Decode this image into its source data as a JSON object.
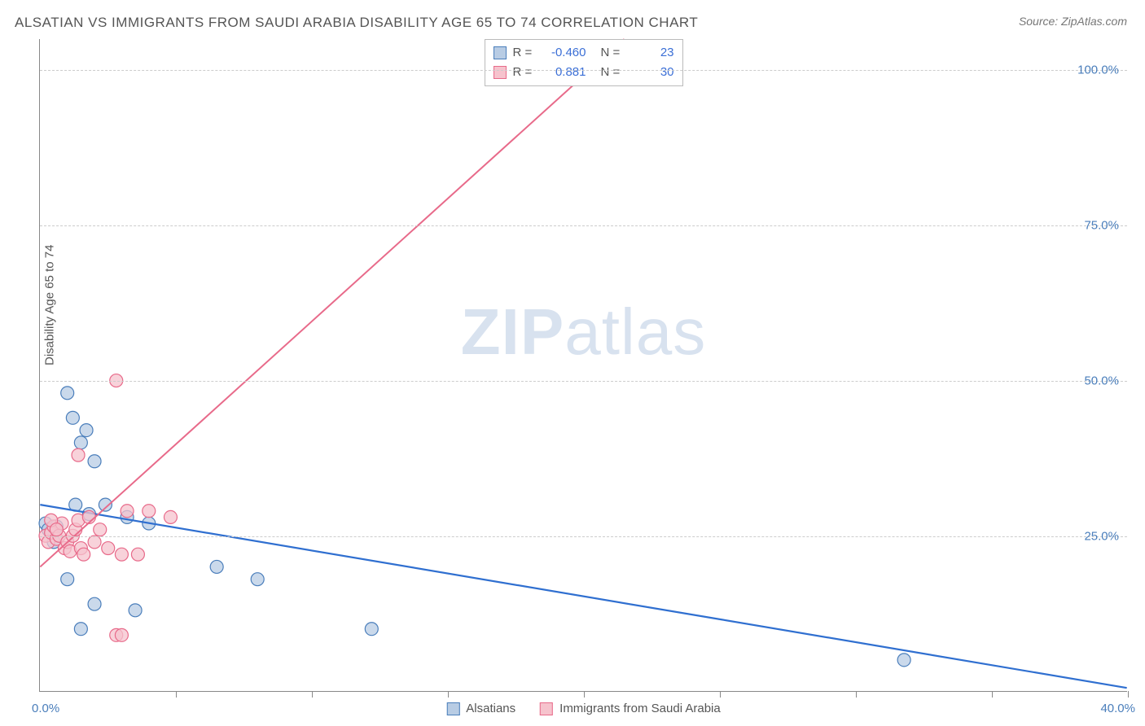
{
  "title": "ALSATIAN VS IMMIGRANTS FROM SAUDI ARABIA DISABILITY AGE 65 TO 74 CORRELATION CHART",
  "source_label": "Source: ZipAtlas.com",
  "ylabel": "Disability Age 65 to 74",
  "watermark": {
    "bold": "ZIP",
    "rest": "atlas"
  },
  "chart": {
    "type": "scatter",
    "xlim": [
      0,
      40
    ],
    "ylim": [
      0,
      105
    ],
    "xticks": [
      0,
      5,
      10,
      15,
      20,
      25,
      30,
      35,
      40
    ],
    "yticks": [
      25,
      50,
      75,
      100
    ],
    "ytick_labels": [
      "25.0%",
      "50.0%",
      "75.0%",
      "100.0%"
    ],
    "x_corner_left": "0.0%",
    "x_corner_right": "40.0%",
    "grid_color": "#cccccc",
    "axis_color": "#888888",
    "background_color": "#ffffff"
  },
  "series": [
    {
      "name": "Alsatians",
      "fill": "#b8cce4",
      "stroke": "#4a7ebb",
      "marker_radius": 8,
      "R": "-0.460",
      "N": "23",
      "trend": {
        "x1": 0,
        "y1": 30,
        "x2": 40,
        "y2": 0.5,
        "color": "#2f6fd0",
        "width": 2.2
      },
      "points": [
        [
          0.2,
          27
        ],
        [
          0.3,
          26
        ],
        [
          0.4,
          25.5
        ],
        [
          0.5,
          24
        ],
        [
          0.6,
          26.5
        ],
        [
          1.0,
          48
        ],
        [
          1.2,
          44
        ],
        [
          1.5,
          40
        ],
        [
          1.7,
          42
        ],
        [
          2.0,
          37
        ],
        [
          1.3,
          30
        ],
        [
          1.8,
          28.5
        ],
        [
          2.4,
          30
        ],
        [
          3.2,
          28
        ],
        [
          4.0,
          27
        ],
        [
          1.0,
          18
        ],
        [
          2.0,
          14
        ],
        [
          3.5,
          13
        ],
        [
          6.5,
          20
        ],
        [
          8.0,
          18
        ],
        [
          12.2,
          10
        ],
        [
          31.8,
          5
        ],
        [
          1.5,
          10
        ]
      ]
    },
    {
      "name": "Immigrants from Saudi Arabia",
      "fill": "#f6c3cd",
      "stroke": "#e86a8a",
      "marker_radius": 8,
      "R": "0.881",
      "N": "30",
      "trend": {
        "x1": 0,
        "y1": 20,
        "x2": 21.5,
        "y2": 105,
        "color": "#e86a8a",
        "width": 2
      },
      "points": [
        [
          0.2,
          25
        ],
        [
          0.3,
          24
        ],
        [
          0.4,
          25.5
        ],
        [
          0.5,
          26.5
        ],
        [
          0.6,
          24.5
        ],
        [
          0.7,
          25
        ],
        [
          0.8,
          27
        ],
        [
          0.9,
          23
        ],
        [
          1.0,
          24
        ],
        [
          1.1,
          22.5
        ],
        [
          1.2,
          25
        ],
        [
          1.3,
          26
        ],
        [
          1.4,
          27.5
        ],
        [
          1.5,
          23
        ],
        [
          1.6,
          22
        ],
        [
          1.8,
          28
        ],
        [
          2.0,
          24
        ],
        [
          2.2,
          26
        ],
        [
          2.5,
          23
        ],
        [
          2.8,
          50
        ],
        [
          3.0,
          22
        ],
        [
          3.2,
          29
        ],
        [
          3.6,
          22
        ],
        [
          4.0,
          29
        ],
        [
          4.8,
          28
        ],
        [
          2.8,
          9
        ],
        [
          3.0,
          9
        ],
        [
          1.4,
          38
        ],
        [
          0.4,
          27.5
        ],
        [
          0.6,
          26
        ]
      ]
    }
  ],
  "legend_top_labels": {
    "R": "R =",
    "N": "N ="
  },
  "legend_bottom": [
    {
      "label": "Alsatians",
      "fill": "#b8cce4",
      "stroke": "#4a7ebb"
    },
    {
      "label": "Immigrants from Saudi Arabia",
      "fill": "#f6c3cd",
      "stroke": "#e86a8a"
    }
  ]
}
